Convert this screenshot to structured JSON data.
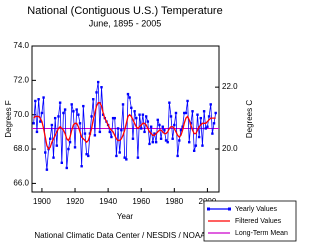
{
  "chart_data": {
    "type": "line",
    "title": "National (Contiguous U.S.) Temperature",
    "subtitle": "June, 1895 - 2005",
    "x_label": "Year",
    "y_label": "Degrees F",
    "y2_label": "Degrees C",
    "footer": "National Climatic Data Center / NESDIS / NOAA",
    "x": [
      1895,
      1896,
      1897,
      1898,
      1899,
      1900,
      1901,
      1902,
      1903,
      1904,
      1905,
      1906,
      1907,
      1908,
      1909,
      1910,
      1911,
      1912,
      1913,
      1914,
      1915,
      1916,
      1917,
      1918,
      1919,
      1920,
      1921,
      1922,
      1923,
      1924,
      1925,
      1926,
      1927,
      1928,
      1929,
      1930,
      1931,
      1932,
      1933,
      1934,
      1935,
      1936,
      1937,
      1938,
      1939,
      1940,
      1941,
      1942,
      1943,
      1944,
      1945,
      1946,
      1947,
      1948,
      1949,
      1950,
      1951,
      1952,
      1953,
      1954,
      1955,
      1956,
      1957,
      1958,
      1959,
      1960,
      1961,
      1962,
      1963,
      1964,
      1965,
      1966,
      1967,
      1968,
      1969,
      1970,
      1971,
      1972,
      1973,
      1974,
      1975,
      1976,
      1977,
      1978,
      1979,
      1980,
      1981,
      1982,
      1983,
      1984,
      1985,
      1986,
      1987,
      1988,
      1989,
      1990,
      1991,
      1992,
      1993,
      1994,
      1995,
      1996,
      1997,
      1998,
      1999,
      2000,
      2001,
      2002,
      2003,
      2004,
      2005
    ],
    "series": [
      {
        "name": "Yearly Values",
        "color": "#0000ff",
        "markers": true,
        "values": [
          69.5,
          70.8,
          69.0,
          70.9,
          69.6,
          70.1,
          71.0,
          67.8,
          66.8,
          68.0,
          68.6,
          69.4,
          67.5,
          69.8,
          68.2,
          69.9,
          70.7,
          67.2,
          70.1,
          70.3,
          66.9,
          68.0,
          68.4,
          70.6,
          70.2,
          68.1,
          70.3,
          70.0,
          69.5,
          67.0,
          70.5,
          68.9,
          67.7,
          67.6,
          68.9,
          69.9,
          70.9,
          68.8,
          71.3,
          71.9,
          69.0,
          71.6,
          70.0,
          69.8,
          69.6,
          69.4,
          69.0,
          68.7,
          69.8,
          69.8,
          67.6,
          69.2,
          67.8,
          69.1,
          70.6,
          67.5,
          67.4,
          71.2,
          71.0,
          70.4,
          68.6,
          70.2,
          69.8,
          67.5,
          70.0,
          69.2,
          70.0,
          69.0,
          69.9,
          69.6,
          68.3,
          69.3,
          68.4,
          68.9,
          68.4,
          69.7,
          69.4,
          68.6,
          69.3,
          69.1,
          68.5,
          68.4,
          70.7,
          69.9,
          68.6,
          69.4,
          70.1,
          67.6,
          68.5,
          69.1,
          69.3,
          70.1,
          70.1,
          70.8,
          68.4,
          69.5,
          70.2,
          67.9,
          68.2,
          70.0,
          68.7,
          69.8,
          68.2,
          70.2,
          69.2,
          69.3,
          69.9,
          70.6,
          68.9,
          69.5,
          70.1
        ]
      },
      {
        "name": "Filtered Values",
        "color": "#ff0000",
        "markers": false,
        "values": [
          69.8,
          69.9,
          69.9,
          69.9,
          69.8,
          69.6,
          69.2,
          68.7,
          68.2,
          68.0,
          68.1,
          68.4,
          68.6,
          68.8,
          69.0,
          69.2,
          69.3,
          69.2,
          69.1,
          68.9,
          68.6,
          68.5,
          68.7,
          69.1,
          69.4,
          69.5,
          69.5,
          69.3,
          69.0,
          68.7,
          68.6,
          68.5,
          68.4,
          68.5,
          68.8,
          69.2,
          69.7,
          70.1,
          70.5,
          70.7,
          70.7,
          70.5,
          70.1,
          69.8,
          69.6,
          69.4,
          69.2,
          69.1,
          69.0,
          68.8,
          68.6,
          68.5,
          68.5,
          68.6,
          68.8,
          69.1,
          69.5,
          69.9,
          70.0,
          69.9,
          69.7,
          69.5,
          69.3,
          69.2,
          69.3,
          69.4,
          69.5,
          69.5,
          69.4,
          69.2,
          69.0,
          68.9,
          68.8,
          68.8,
          68.9,
          69.0,
          69.1,
          69.1,
          69.0,
          68.9,
          68.9,
          69.0,
          69.2,
          69.3,
          69.3,
          69.2,
          69.0,
          68.8,
          68.7,
          68.8,
          69.1,
          69.5,
          69.8,
          69.9,
          69.7,
          69.4,
          69.1,
          68.9,
          68.9,
          69.1,
          69.3,
          69.4,
          69.5,
          69.5,
          69.5,
          69.6,
          69.7,
          69.8,
          69.8,
          69.8,
          69.8
        ]
      }
    ],
    "mean_line": {
      "name": "Long-Term Mean",
      "color": "#cc00cc",
      "value": 69.2
    },
    "xlim": [
      1894,
      2007
    ],
    "xticks": [
      1900,
      1920,
      1940,
      1960,
      1980,
      2000
    ],
    "ylim": [
      65.5,
      74
    ],
    "yticks": [
      {
        "value": 66,
        "label": "66.0"
      },
      {
        "value": 68,
        "label": "68.0"
      },
      {
        "value": 70,
        "label": "70.0"
      },
      {
        "value": 72,
        "label": "72.0"
      },
      {
        "value": 74,
        "label": "74.0"
      }
    ],
    "y2lim": [
      18.61,
      23.33
    ],
    "y2ticks": [
      {
        "value": 20,
        "label": "20.0"
      },
      {
        "value": 22,
        "label": "22.0"
      }
    ],
    "legend": "bottom-right",
    "grid": false
  }
}
